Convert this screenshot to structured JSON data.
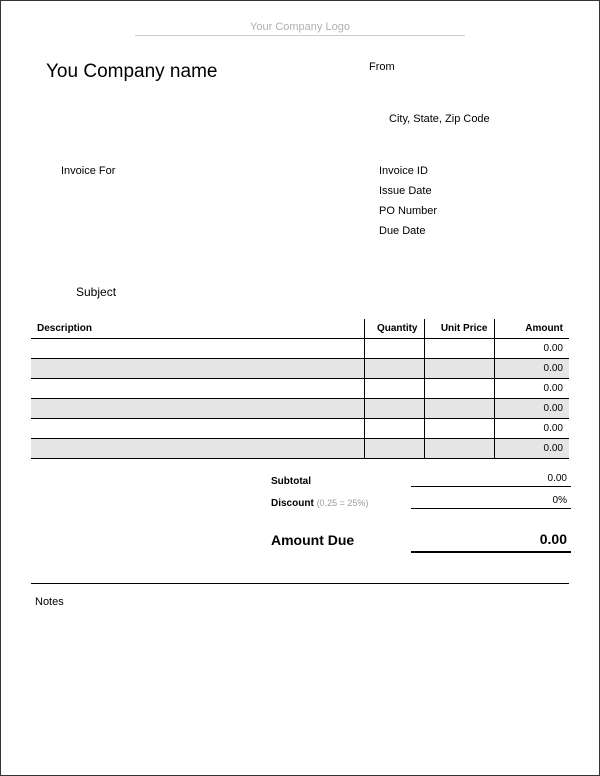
{
  "logo_placeholder": "Your Company Logo",
  "company_name": "You Company name",
  "from_label": "From",
  "city_label": "City, State, Zip Code",
  "invoice_for_label": "Invoice For",
  "meta": {
    "invoice_id": "Invoice ID",
    "issue_date": "Issue Date",
    "po_number": "PO Number",
    "due_date": "Due Date"
  },
  "subject_label": "Subject",
  "table": {
    "columns": {
      "description": "Description",
      "quantity": "Quantity",
      "unit_price": "Unit Price",
      "amount": "Amount"
    },
    "rows": [
      {
        "desc": "",
        "qty": "",
        "price": "",
        "amt": "0.00",
        "alt": false
      },
      {
        "desc": "",
        "qty": "",
        "price": "",
        "amt": "0.00",
        "alt": true
      },
      {
        "desc": "",
        "qty": "",
        "price": "",
        "amt": "0.00",
        "alt": false
      },
      {
        "desc": "",
        "qty": "",
        "price": "",
        "amt": "0.00",
        "alt": true
      },
      {
        "desc": "",
        "qty": "",
        "price": "",
        "amt": "0.00",
        "alt": false
      },
      {
        "desc": "",
        "qty": "",
        "price": "",
        "amt": "0.00",
        "alt": true
      }
    ]
  },
  "totals": {
    "subtotal_label": "Subtotal",
    "subtotal_value": "0.00",
    "discount_label": "Discount",
    "discount_hint": "(0.25 = 25%)",
    "discount_value": "0%",
    "amount_due_label": "Amount Due",
    "amount_due_value": "0.00"
  },
  "notes_label": "Notes",
  "colors": {
    "alt_row": "#e5e5e5",
    "border": "#000000",
    "hint": "#999999",
    "logo_text": "#b0b0b0"
  }
}
